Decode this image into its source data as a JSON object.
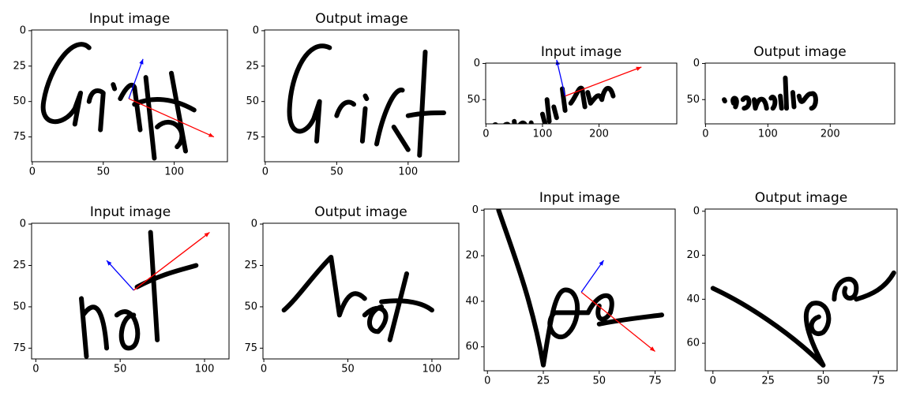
{
  "chart_data": [
    {
      "type": "image",
      "title": "Input image",
      "xlim": [
        -0.5,
        137.5
      ],
      "ylim": [
        92.5,
        -0.5
      ],
      "xticks": [
        0,
        50,
        100
      ],
      "yticks": [
        0,
        25,
        50,
        75
      ]
    },
    {
      "type": "image",
      "title": "Output image",
      "xlim": [
        -0.5,
        135.5
      ],
      "ylim": [
        92.5,
        -0.5
      ],
      "xticks": [
        0,
        50,
        100
      ],
      "yticks": [
        0,
        25,
        50,
        75
      ]
    },
    {
      "type": "image",
      "title": "Input image",
      "xlim": [
        -0.5,
        337.5
      ],
      "ylim": [
        83.5,
        -0.5
      ],
      "xticks": [
        0,
        100,
        200
      ],
      "yticks": [
        0,
        50
      ]
    },
    {
      "type": "image",
      "title": "Output image",
      "xlim": [
        -0.5,
        303.5
      ],
      "ylim": [
        83.5,
        -0.5
      ],
      "xticks": [
        0,
        100,
        200
      ],
      "yticks": [
        0,
        50
      ]
    },
    {
      "type": "image",
      "title": "Input image",
      "xlim": [
        -2.5,
        114.5
      ],
      "ylim": [
        81.5,
        -0.5
      ],
      "xticks": [
        0,
        50,
        100
      ],
      "yticks": [
        0,
        25,
        50,
        75
      ]
    },
    {
      "type": "image",
      "title": "Output image",
      "xlim": [
        -0.5,
        116
      ],
      "ylim": [
        81.5,
        -0.5
      ],
      "xticks": [
        0,
        50,
        100
      ],
      "yticks": [
        0,
        25,
        50,
        75
      ]
    },
    {
      "type": "image",
      "title": "Input image",
      "xlim": [
        -1.5,
        84
      ],
      "ylim": [
        70.5,
        -0.5
      ],
      "xticks": [
        0,
        25,
        50,
        75
      ],
      "yticks": [
        0,
        20,
        40,
        60
      ]
    },
    {
      "type": "image",
      "title": "Output image",
      "xlim": [
        -3.5,
        83.5
      ],
      "ylim": [
        72.5,
        -1
      ],
      "xticks": [
        0,
        25,
        50,
        75
      ],
      "yticks": [
        0,
        20,
        40,
        60
      ]
    }
  ]
}
